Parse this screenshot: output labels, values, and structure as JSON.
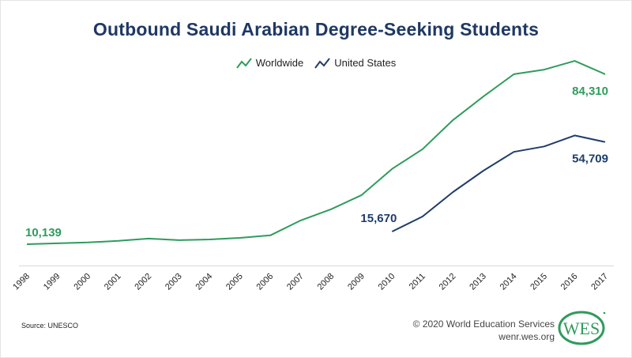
{
  "chart_data": {
    "type": "line",
    "title": "Outbound Saudi Arabian Degree-Seeking Students",
    "xlabel": "",
    "ylabel": "",
    "categories": [
      "1998",
      "1999",
      "2000",
      "2001",
      "2002",
      "2003",
      "2004",
      "2005",
      "2006",
      "2007",
      "2008",
      "2009",
      "2010",
      "2011",
      "2012",
      "2013",
      "2014",
      "2015",
      "2016",
      "2017"
    ],
    "series": [
      {
        "name": "Worldwide",
        "color": "#2e9c5c",
        "values": [
          10139,
          10500,
          10900,
          11600,
          12600,
          11900,
          12200,
          12900,
          14000,
          20500,
          25400,
          31600,
          43000,
          51600,
          64300,
          74600,
          84300,
          86300,
          90100,
          84310
        ]
      },
      {
        "name": "United States",
        "color": "#1f3d6b",
        "values": [
          null,
          null,
          null,
          null,
          null,
          null,
          null,
          null,
          null,
          null,
          null,
          null,
          15670,
          22200,
          32900,
          42200,
          50400,
          52800,
          57600,
          54709
        ]
      }
    ],
    "annotations": [
      {
        "series": "Worldwide",
        "year": "1998",
        "label": "10,139"
      },
      {
        "series": "Worldwide",
        "year": "2017",
        "label": "84,310"
      },
      {
        "series": "United States",
        "year": "2010",
        "label": "15,670"
      },
      {
        "series": "United States",
        "year": "2017",
        "label": "54,709"
      }
    ],
    "legend_position": "top-center",
    "grid": false,
    "ylim": [
      0,
      95000
    ]
  },
  "header": {
    "title": "Outbound Saudi Arabian Degree-Seeking Students"
  },
  "legend": {
    "items": [
      {
        "label": "Worldwide",
        "icon": "line-chart-icon",
        "color": "#2e9c5c"
      },
      {
        "label": "United States",
        "icon": "line-chart-icon",
        "color": "#1f3d6b"
      }
    ]
  },
  "footer": {
    "source": "Source: UNESCO",
    "copyright": "© 2020 World Education Services",
    "url": "wenr.wes.org",
    "logo_text": "WES"
  }
}
